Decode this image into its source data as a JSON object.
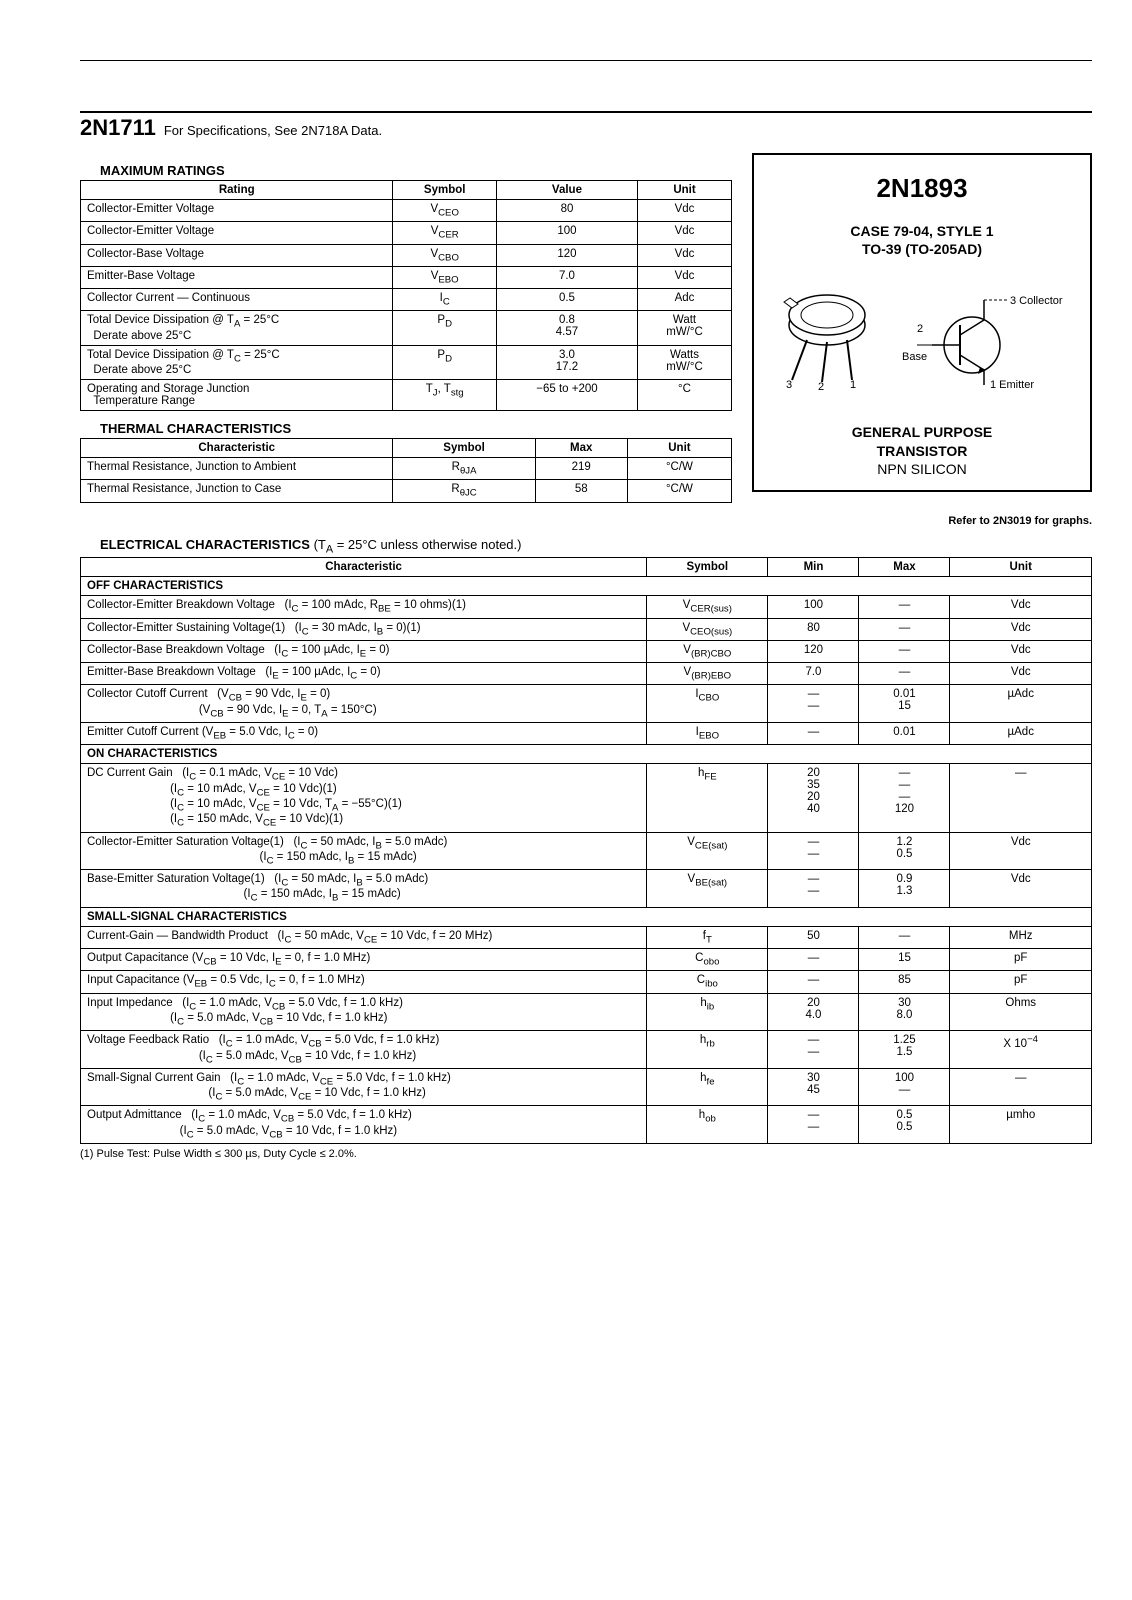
{
  "top": {
    "part": "2N1711",
    "note": "For Specifications, See 2N718A Data."
  },
  "right": {
    "part": "2N1893",
    "case1": "CASE 79-04, STYLE 1",
    "case2": "TO-39 (TO-205AD)",
    "pin_c": "3 Collector",
    "pin_b": "Base",
    "pin_b_num": "2",
    "pin_e": "1 Emitter",
    "gp1": "GENERAL PURPOSE",
    "gp2": "TRANSISTOR",
    "gp3": "NPN SILICON",
    "refer": "Refer to 2N3019 for graphs."
  },
  "max_ratings": {
    "title": "MAXIMUM RATINGS",
    "headers": [
      "Rating",
      "Symbol",
      "Value",
      "Unit"
    ],
    "rows": [
      {
        "r": "Collector-Emitter Voltage",
        "s": "V<sub>CEO</sub>",
        "v": "80",
        "u": "Vdc"
      },
      {
        "r": "Collector-Emitter Voltage",
        "s": "V<sub>CER</sub>",
        "v": "100",
        "u": "Vdc"
      },
      {
        "r": "Collector-Base Voltage",
        "s": "V<sub>CBO</sub>",
        "v": "120",
        "u": "Vdc"
      },
      {
        "r": "Emitter-Base Voltage",
        "s": "V<sub>EBO</sub>",
        "v": "7.0",
        "u": "Vdc"
      },
      {
        "r": "Collector Current — Continuous",
        "s": "I<sub>C</sub>",
        "v": "0.5",
        "u": "Adc"
      },
      {
        "r": "Total Device Dissipation @ T<sub>A</sub> = 25°C<br>&nbsp;&nbsp;Derate above 25°C",
        "s": "P<sub>D</sub>",
        "v": "0.8<br>4.57",
        "u": "Watt<br>mW/°C"
      },
      {
        "r": "Total Device Dissipation @ T<sub>C</sub> = 25°C<br>&nbsp;&nbsp;Derate above 25°C",
        "s": "P<sub>D</sub>",
        "v": "3.0<br>17.2",
        "u": "Watts<br>mW/°C"
      },
      {
        "r": "Operating and Storage Junction<br>&nbsp;&nbsp;Temperature Range",
        "s": "T<sub>J</sub>, T<sub>stg</sub>",
        "v": "−65 to +200",
        "u": "°C"
      }
    ]
  },
  "thermal": {
    "title": "THERMAL CHARACTERISTICS",
    "headers": [
      "Characteristic",
      "Symbol",
      "Max",
      "Unit"
    ],
    "rows": [
      {
        "r": "Thermal Resistance, Junction to Ambient",
        "s": "R<sub>θJA</sub>",
        "v": "219",
        "u": "°C/W"
      },
      {
        "r": "Thermal Resistance, Junction to Case",
        "s": "R<sub>θJC</sub>",
        "v": "58",
        "u": "°C/W"
      }
    ]
  },
  "elec": {
    "title": "ELECTRICAL CHARACTERISTICS",
    "cond": "(T<sub>A</sub> = 25°C unless otherwise noted.)",
    "headers": [
      "Characteristic",
      "Symbol",
      "Min",
      "Max",
      "Unit"
    ],
    "sections": [
      {
        "name": "OFF CHARACTERISTICS",
        "rows": [
          {
            "c": "Collector-Emitter Breakdown Voltage&nbsp;&nbsp;&nbsp;(I<sub>C</sub> = 100 mAdc, R<sub>BE</sub> = 10 ohms)(1)",
            "s": "V<sub>CER(sus)</sub>",
            "min": "100",
            "max": "—",
            "u": "Vdc"
          },
          {
            "c": "Collector-Emitter Sustaining Voltage(1)&nbsp;&nbsp;&nbsp;(I<sub>C</sub> = 30 mAdc, I<sub>B</sub> = 0)(1)",
            "s": "V<sub>CEO(sus)</sub>",
            "min": "80",
            "max": "—",
            "u": "Vdc"
          },
          {
            "c": "Collector-Base Breakdown Voltage&nbsp;&nbsp;&nbsp;(I<sub>C</sub> = 100 µAdc, I<sub>E</sub> = 0)",
            "s": "V<sub>(BR)CBO</sub>",
            "min": "120",
            "max": "—",
            "u": "Vdc"
          },
          {
            "c": "Emitter-Base Breakdown Voltage&nbsp;&nbsp;&nbsp;(I<sub>E</sub> = 100 µAdc, I<sub>C</sub> = 0)",
            "s": "V<sub>(BR)EBO</sub>",
            "min": "7.0",
            "max": "—",
            "u": "Vdc"
          },
          {
            "c": "Collector Cutoff Current&nbsp;&nbsp;&nbsp;(V<sub>CB</sub> = 90 Vdc, I<sub>E</sub> = 0)<br>&nbsp;&nbsp;&nbsp;&nbsp;&nbsp;&nbsp;&nbsp;&nbsp;&nbsp;&nbsp;&nbsp;&nbsp;&nbsp;&nbsp;&nbsp;&nbsp;&nbsp;&nbsp;&nbsp;&nbsp;&nbsp;&nbsp;&nbsp;&nbsp;&nbsp;&nbsp;&nbsp;&nbsp;&nbsp;&nbsp;&nbsp;&nbsp;&nbsp;&nbsp;&nbsp;(V<sub>CB</sub> = 90 Vdc, I<sub>E</sub> = 0, T<sub>A</sub> = 150°C)",
            "s": "I<sub>CBO</sub>",
            "min": "—<br>—",
            "max": "0.01<br>15",
            "u": "µAdc"
          },
          {
            "c": "Emitter Cutoff Current (V<sub>EB</sub> = 5.0 Vdc, I<sub>C</sub> = 0)",
            "s": "I<sub>EBO</sub>",
            "min": "—",
            "max": "0.01",
            "u": "µAdc"
          }
        ]
      },
      {
        "name": "ON CHARACTERISTICS",
        "rows": [
          {
            "c": "DC Current Gain&nbsp;&nbsp;&nbsp;(I<sub>C</sub> = 0.1 mAdc, V<sub>CE</sub> = 10 Vdc)<br>&nbsp;&nbsp;&nbsp;&nbsp;&nbsp;&nbsp;&nbsp;&nbsp;&nbsp;&nbsp;&nbsp;&nbsp;&nbsp;&nbsp;&nbsp;&nbsp;&nbsp;&nbsp;&nbsp;&nbsp;&nbsp;&nbsp;&nbsp;&nbsp;&nbsp;&nbsp;(I<sub>C</sub> = 10 mAdc, V<sub>CE</sub> = 10 Vdc)(1)<br>&nbsp;&nbsp;&nbsp;&nbsp;&nbsp;&nbsp;&nbsp;&nbsp;&nbsp;&nbsp;&nbsp;&nbsp;&nbsp;&nbsp;&nbsp;&nbsp;&nbsp;&nbsp;&nbsp;&nbsp;&nbsp;&nbsp;&nbsp;&nbsp;&nbsp;&nbsp;(I<sub>C</sub> = 10 mAdc, V<sub>CE</sub> = 10 Vdc, T<sub>A</sub> = −55°C)(1)<br>&nbsp;&nbsp;&nbsp;&nbsp;&nbsp;&nbsp;&nbsp;&nbsp;&nbsp;&nbsp;&nbsp;&nbsp;&nbsp;&nbsp;&nbsp;&nbsp;&nbsp;&nbsp;&nbsp;&nbsp;&nbsp;&nbsp;&nbsp;&nbsp;&nbsp;&nbsp;(I<sub>C</sub> = 150 mAdc, V<sub>CE</sub> = 10 Vdc)(1)",
            "s": "h<sub>FE</sub>",
            "min": "20<br>35<br>20<br>40",
            "max": "—<br>—<br>—<br>120",
            "u": "—"
          },
          {
            "c": "Collector-Emitter Saturation Voltage(1)&nbsp;&nbsp;&nbsp;(I<sub>C</sub> = 50 mAdc, I<sub>B</sub> = 5.0 mAdc)<br>&nbsp;&nbsp;&nbsp;&nbsp;&nbsp;&nbsp;&nbsp;&nbsp;&nbsp;&nbsp;&nbsp;&nbsp;&nbsp;&nbsp;&nbsp;&nbsp;&nbsp;&nbsp;&nbsp;&nbsp;&nbsp;&nbsp;&nbsp;&nbsp;&nbsp;&nbsp;&nbsp;&nbsp;&nbsp;&nbsp;&nbsp;&nbsp;&nbsp;&nbsp;&nbsp;&nbsp;&nbsp;&nbsp;&nbsp;&nbsp;&nbsp;&nbsp;&nbsp;&nbsp;&nbsp;&nbsp;&nbsp;&nbsp;&nbsp;&nbsp;&nbsp;&nbsp;&nbsp;&nbsp;(I<sub>C</sub> = 150 mAdc, I<sub>B</sub> = 15 mAdc)",
            "s": "V<sub>CE(sat)</sub>",
            "min": "—<br>—",
            "max": "1.2<br>0.5",
            "u": "Vdc"
          },
          {
            "c": "Base-Emitter Saturation Voltage(1)&nbsp;&nbsp;&nbsp;(I<sub>C</sub> = 50 mAdc, I<sub>B</sub> = 5.0 mAdc)<br>&nbsp;&nbsp;&nbsp;&nbsp;&nbsp;&nbsp;&nbsp;&nbsp;&nbsp;&nbsp;&nbsp;&nbsp;&nbsp;&nbsp;&nbsp;&nbsp;&nbsp;&nbsp;&nbsp;&nbsp;&nbsp;&nbsp;&nbsp;&nbsp;&nbsp;&nbsp;&nbsp;&nbsp;&nbsp;&nbsp;&nbsp;&nbsp;&nbsp;&nbsp;&nbsp;&nbsp;&nbsp;&nbsp;&nbsp;&nbsp;&nbsp;&nbsp;&nbsp;&nbsp;&nbsp;&nbsp;&nbsp;&nbsp;&nbsp;(I<sub>C</sub> = 150 mAdc, I<sub>B</sub> = 15 mAdc)",
            "s": "V<sub>BE(sat)</sub>",
            "min": "—<br>—",
            "max": "0.9<br>1.3",
            "u": "Vdc"
          }
        ]
      },
      {
        "name": "SMALL-SIGNAL CHARACTERISTICS",
        "rows": [
          {
            "c": "Current-Gain — Bandwidth Product&nbsp;&nbsp;&nbsp;(I<sub>C</sub> = 50 mAdc, V<sub>CE</sub> = 10 Vdc, f = 20 MHz)",
            "s": "f<sub>T</sub>",
            "min": "50",
            "max": "—",
            "u": "MHz"
          },
          {
            "c": "Output Capacitance (V<sub>CB</sub> = 10 Vdc, I<sub>E</sub> = 0, f = 1.0 MHz)",
            "s": "C<sub>obo</sub>",
            "min": "—",
            "max": "15",
            "u": "pF"
          },
          {
            "c": "Input Capacitance (V<sub>EB</sub> = 0.5 Vdc, I<sub>C</sub> = 0, f = 1.0 MHz)",
            "s": "C<sub>ibo</sub>",
            "min": "—",
            "max": "85",
            "u": "pF"
          },
          {
            "c": "Input Impedance&nbsp;&nbsp;&nbsp;(I<sub>C</sub> = 1.0 mAdc, V<sub>CB</sub> = 5.0 Vdc, f = 1.0 kHz)<br>&nbsp;&nbsp;&nbsp;&nbsp;&nbsp;&nbsp;&nbsp;&nbsp;&nbsp;&nbsp;&nbsp;&nbsp;&nbsp;&nbsp;&nbsp;&nbsp;&nbsp;&nbsp;&nbsp;&nbsp;&nbsp;&nbsp;&nbsp;&nbsp;&nbsp;&nbsp;(I<sub>C</sub> = 5.0 mAdc, V<sub>CB</sub> = 10 Vdc, f = 1.0 kHz)",
            "s": "h<sub>ib</sub>",
            "min": "20<br>4.0",
            "max": "30<br>8.0",
            "u": "Ohms"
          },
          {
            "c": "Voltage Feedback Ratio&nbsp;&nbsp;&nbsp;(I<sub>C</sub> = 1.0 mAdc, V<sub>CB</sub> = 5.0 Vdc, f = 1.0 kHz)<br>&nbsp;&nbsp;&nbsp;&nbsp;&nbsp;&nbsp;&nbsp;&nbsp;&nbsp;&nbsp;&nbsp;&nbsp;&nbsp;&nbsp;&nbsp;&nbsp;&nbsp;&nbsp;&nbsp;&nbsp;&nbsp;&nbsp;&nbsp;&nbsp;&nbsp;&nbsp;&nbsp;&nbsp;&nbsp;&nbsp;&nbsp;&nbsp;&nbsp;&nbsp;&nbsp;(I<sub>C</sub> = 5.0 mAdc, V<sub>CB</sub> = 10 Vdc, f = 1.0 kHz)",
            "s": "h<sub>rb</sub>",
            "min": "—<br>—",
            "max": "1.25<br>1.5",
            "u": "X 10<sup>−4</sup>"
          },
          {
            "c": "Small-Signal Current Gain&nbsp;&nbsp;&nbsp;(I<sub>C</sub> = 1.0 mAdc, V<sub>CE</sub> = 5.0 Vdc, f = 1.0 kHz)<br>&nbsp;&nbsp;&nbsp;&nbsp;&nbsp;&nbsp;&nbsp;&nbsp;&nbsp;&nbsp;&nbsp;&nbsp;&nbsp;&nbsp;&nbsp;&nbsp;&nbsp;&nbsp;&nbsp;&nbsp;&nbsp;&nbsp;&nbsp;&nbsp;&nbsp;&nbsp;&nbsp;&nbsp;&nbsp;&nbsp;&nbsp;&nbsp;&nbsp;&nbsp;&nbsp;&nbsp;&nbsp;&nbsp;(I<sub>C</sub> = 5.0 mAdc, V<sub>CE</sub> = 10 Vdc, f = 1.0 kHz)",
            "s": "h<sub>fe</sub>",
            "min": "30<br>45",
            "max": "100<br>—",
            "u": "—"
          },
          {
            "c": "Output Admittance&nbsp;&nbsp;&nbsp;(I<sub>C</sub> = 1.0 mAdc, V<sub>CB</sub> = 5.0 Vdc, f = 1.0 kHz)<br>&nbsp;&nbsp;&nbsp;&nbsp;&nbsp;&nbsp;&nbsp;&nbsp;&nbsp;&nbsp;&nbsp;&nbsp;&nbsp;&nbsp;&nbsp;&nbsp;&nbsp;&nbsp;&nbsp;&nbsp;&nbsp;&nbsp;&nbsp;&nbsp;&nbsp;&nbsp;&nbsp;&nbsp;&nbsp;(I<sub>C</sub> = 5.0 mAdc, V<sub>CB</sub> = 10 Vdc, f = 1.0 kHz)",
            "s": "h<sub>ob</sub>",
            "min": "—<br>—",
            "max": "0.5<br>0.5",
            "u": "µmho"
          }
        ]
      }
    ]
  },
  "footnote": "(1) Pulse Test: Pulse Width ≤ 300 µs, Duty Cycle ≤ 2.0%."
}
